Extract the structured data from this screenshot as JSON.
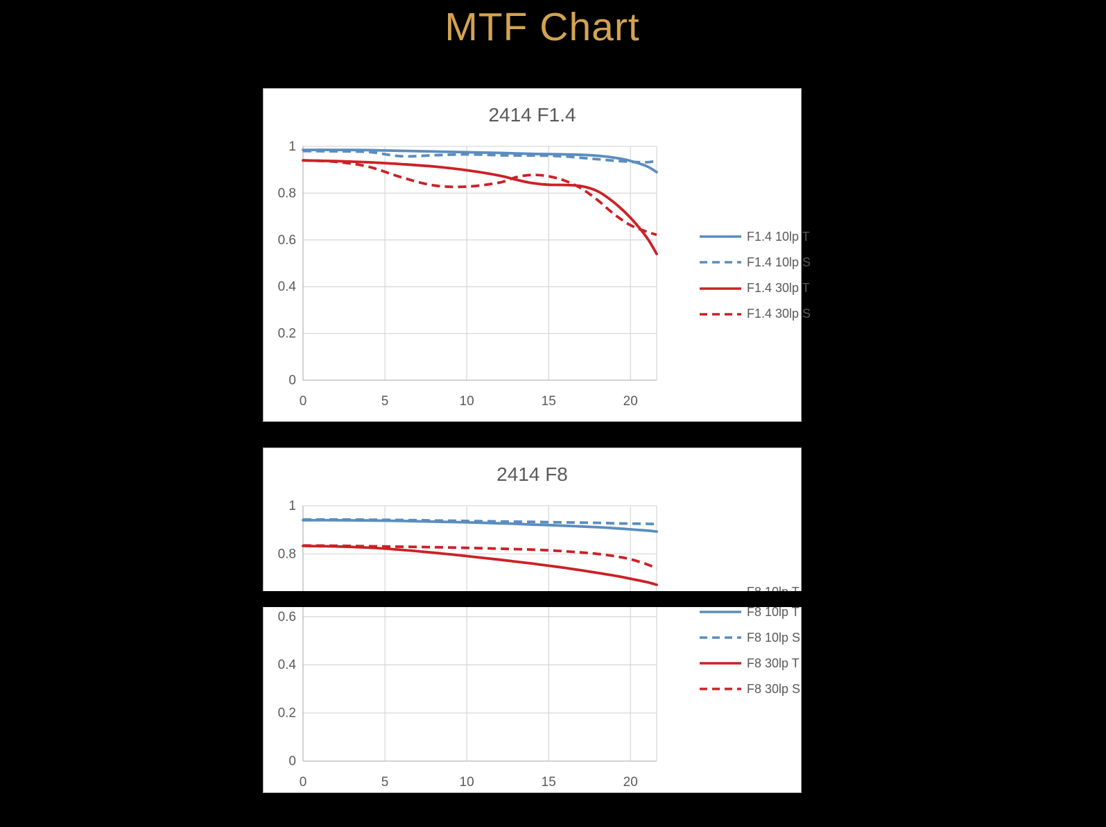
{
  "page_title": "MTF Chart",
  "colors": {
    "background": "#000000",
    "page_title": "#D4A351",
    "chart_text": "#595959",
    "gridline": "#D9D9D9",
    "axis_line": "#BFBFBF",
    "series_blue": "#5B8DBE",
    "series_red": "#CB2127",
    "panel_background": "#FFFFFF",
    "panel_border": "#ABABAB"
  },
  "artifact": {
    "label": "F8 10lp T"
  },
  "chart_data": [
    {
      "type": "line",
      "title": "2414 F1.4",
      "xlabel": "",
      "ylabel": "",
      "xlim": [
        0,
        21.6
      ],
      "ylim": [
        0,
        1
      ],
      "x_ticks": [
        0,
        5,
        10,
        15,
        20
      ],
      "y_ticks": [
        0,
        0.2,
        0.4,
        0.6,
        0.8,
        1
      ],
      "grid": true,
      "legend_position": "right",
      "x": [
        0,
        2,
        4,
        6,
        8,
        10,
        12,
        13,
        14,
        15,
        16,
        17,
        18,
        19,
        20,
        21,
        21.6
      ],
      "series": [
        {
          "name": "F1.4 10lp T",
          "color": "#5B8DBE",
          "dash": false,
          "values": [
            0.985,
            0.985,
            0.984,
            0.981,
            0.978,
            0.975,
            0.972,
            0.97,
            0.968,
            0.967,
            0.966,
            0.964,
            0.96,
            0.952,
            0.938,
            0.915,
            0.89
          ]
        },
        {
          "name": "F1.4 10lp S",
          "color": "#5B8DBE",
          "dash": true,
          "values": [
            0.98,
            0.979,
            0.976,
            0.958,
            0.962,
            0.966,
            0.962,
            0.961,
            0.961,
            0.96,
            0.957,
            0.951,
            0.945,
            0.939,
            0.934,
            0.932,
            0.938
          ]
        },
        {
          "name": "F1.4 30lp T",
          "color": "#CB2127",
          "dash": false,
          "values": [
            0.94,
            0.937,
            0.932,
            0.924,
            0.914,
            0.898,
            0.875,
            0.858,
            0.843,
            0.836,
            0.835,
            0.83,
            0.808,
            0.76,
            0.695,
            0.61,
            0.54
          ]
        },
        {
          "name": "F1.4 30lp S",
          "color": "#CB2127",
          "dash": true,
          "values": [
            0.94,
            0.934,
            0.913,
            0.868,
            0.833,
            0.828,
            0.845,
            0.868,
            0.878,
            0.872,
            0.853,
            0.82,
            0.77,
            0.71,
            0.663,
            0.635,
            0.622
          ]
        }
      ]
    },
    {
      "type": "line",
      "title": "2414 F8",
      "xlabel": "",
      "ylabel": "",
      "xlim": [
        0,
        21.6
      ],
      "ylim": [
        0,
        1
      ],
      "x_ticks": [
        0,
        5,
        10,
        15,
        20
      ],
      "y_ticks": [
        0,
        0.2,
        0.4,
        0.6,
        0.8,
        1
      ],
      "grid": true,
      "legend_position": "right",
      "x": [
        0,
        2,
        4,
        6,
        8,
        10,
        12,
        13,
        14,
        15,
        16,
        17,
        18,
        19,
        20,
        21,
        21.6
      ],
      "series": [
        {
          "name": "F8 10lp T",
          "color": "#5B8DBE",
          "dash": false,
          "values": [
            0.94,
            0.94,
            0.939,
            0.937,
            0.934,
            0.931,
            0.927,
            0.925,
            0.922,
            0.92,
            0.917,
            0.914,
            0.911,
            0.907,
            0.902,
            0.897,
            0.893
          ]
        },
        {
          "name": "F8 10lp S",
          "color": "#5B8DBE",
          "dash": true,
          "values": [
            0.943,
            0.943,
            0.942,
            0.941,
            0.939,
            0.937,
            0.935,
            0.934,
            0.933,
            0.932,
            0.931,
            0.93,
            0.929,
            0.927,
            0.926,
            0.925,
            0.924
          ]
        },
        {
          "name": "F8 30lp T",
          "color": "#CB2127",
          "dash": false,
          "values": [
            0.833,
            0.831,
            0.826,
            0.817,
            0.805,
            0.791,
            0.776,
            0.768,
            0.76,
            0.751,
            0.742,
            0.732,
            0.721,
            0.71,
            0.697,
            0.683,
            0.672
          ]
        },
        {
          "name": "F8 30lp S",
          "color": "#CB2127",
          "dash": true,
          "values": [
            0.835,
            0.834,
            0.832,
            0.83,
            0.828,
            0.825,
            0.822,
            0.82,
            0.818,
            0.815,
            0.811,
            0.806,
            0.8,
            0.791,
            0.778,
            0.757,
            0.74
          ]
        }
      ]
    }
  ]
}
